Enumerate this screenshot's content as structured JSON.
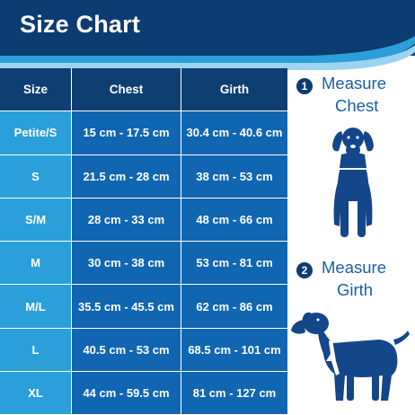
{
  "header": {
    "title": "Size Chart"
  },
  "table": {
    "columns": [
      "Size",
      "Chest",
      "Girth"
    ],
    "rows": [
      {
        "size": "Petite/S",
        "chest": "15 cm - 17.5 cm",
        "girth": "30.4 cm - 40.6 cm"
      },
      {
        "size": "S",
        "chest": "21.5 cm - 28 cm",
        "girth": "38 cm - 53 cm"
      },
      {
        "size": "S/M",
        "chest": "28 cm - 33 cm",
        "girth": "48 cm - 66 cm"
      },
      {
        "size": "M",
        "chest": "30 cm - 38 cm",
        "girth": "53 cm - 81 cm"
      },
      {
        "size": "M/L",
        "chest": "35.5 cm - 45.5 cm",
        "girth": "62 cm - 86 cm"
      },
      {
        "size": "L",
        "chest": "40.5 cm - 53 cm",
        "girth": "68.5 cm - 101 cm"
      },
      {
        "size": "XL",
        "chest": "44 cm - 59.5 cm",
        "girth": "81 cm - 127 cm"
      }
    ]
  },
  "steps": [
    {
      "number": "1",
      "line1": "Measure",
      "line2": "Chest",
      "icon": "dog-front-icon"
    },
    {
      "number": "2",
      "line1": "Measure",
      "line2": "Girth",
      "icon": "dog-side-icon"
    }
  ],
  "colors": {
    "header_bg": "#0d3c72",
    "size_col_bg": "#2b9fd9",
    "value_col_bg": "#1166b1",
    "accent_text": "#1a5fa8"
  }
}
